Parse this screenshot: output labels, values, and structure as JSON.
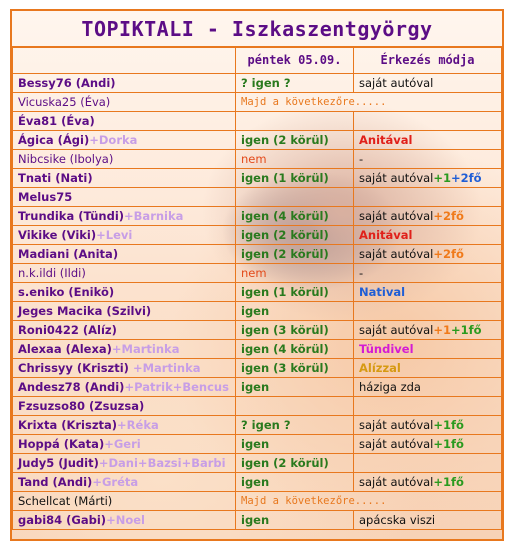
{
  "title": "TOPIKTALI - Iszkaszentgyörgy",
  "headers": {
    "col2": "péntek 05.09.",
    "col3": "Érkezés módja"
  },
  "rows": [
    {
      "name": "Bessy76 (Andi)",
      "comp": "",
      "status": "? igen ?",
      "status_style": "yes",
      "arrival": [
        {
          "t": "saját autóval",
          "s": "txt"
        }
      ]
    },
    {
      "name": "Vicuska25 (Éva)",
      "comp": "",
      "status": "Majd a következőre.....",
      "status_style": "later",
      "arrival": []
    },
    {
      "name": "Éva81 (Éva)",
      "comp": "",
      "status": "",
      "status_style": "yes",
      "arrival": []
    },
    {
      "name": "Ágica (Ági)",
      "comp": "+Dorka",
      "status": "igen (2 körül)",
      "status_style": "yes",
      "arrival": [
        {
          "t": "Anitával",
          "s": "red"
        }
      ]
    },
    {
      "name": "Nibcsike (Ibolya)",
      "comp": "",
      "status": "nem",
      "status_style": "no",
      "arrival": [
        {
          "t": "-",
          "s": "txt"
        }
      ]
    },
    {
      "name": "Tnati (Nati)",
      "comp": "",
      "status": "igen (1 körül)",
      "status_style": "yes",
      "arrival": [
        {
          "t": "saját autóval",
          "s": "txt"
        },
        {
          "t": "+1",
          "s": "green"
        },
        {
          "t": "+2fő",
          "s": "blue"
        }
      ]
    },
    {
      "name": "Melus75",
      "comp": "",
      "status": "",
      "status_style": "yes",
      "arrival": []
    },
    {
      "name": "Trundika (Tündi)",
      "comp": "+Barnika",
      "status": "igen (4 körül)",
      "status_style": "yes",
      "arrival": [
        {
          "t": "saját autóval",
          "s": "txt"
        },
        {
          "t": "+2fő",
          "s": "orange"
        }
      ]
    },
    {
      "name": "Vikike (Viki)",
      "comp": "+Levi",
      "status": "igen (2 körül)",
      "status_style": "yes",
      "arrival": [
        {
          "t": "Anitával",
          "s": "red"
        }
      ]
    },
    {
      "name": "Madiani (Anita)",
      "comp": "",
      "status": "igen (2 körül)",
      "status_style": "yes",
      "arrival": [
        {
          "t": "saját autóval",
          "s": "txt"
        },
        {
          "t": "+2fő",
          "s": "orange"
        }
      ]
    },
    {
      "name": "n.k.ildi (Ildi)",
      "comp": "",
      "status": "nem",
      "status_style": "no",
      "arrival": [
        {
          "t": "-",
          "s": "txt"
        }
      ]
    },
    {
      "name": "s.eniko (Enikö)",
      "comp": "",
      "status": "igen (1 körül)",
      "status_style": "yes",
      "arrival": [
        {
          "t": "Natival",
          "s": "blue"
        }
      ]
    },
    {
      "name": "Jeges Macika (Szilvi)",
      "comp": "",
      "status": "igen",
      "status_style": "yes",
      "arrival": []
    },
    {
      "name": "Roni0422 (Alíz)",
      "comp": "",
      "status": "igen (3 körül)",
      "status_style": "yes",
      "arrival": [
        {
          "t": "saját autóval",
          "s": "txt"
        },
        {
          "t": "+1",
          "s": "orange"
        },
        {
          "t": "+1fő",
          "s": "green"
        }
      ]
    },
    {
      "name": "Alexaa (Alexa)",
      "comp": "+Martinka",
      "status": "igen (4 körül)",
      "status_style": "yes",
      "arrival": [
        {
          "t": "Tündivel",
          "s": "magenta"
        }
      ]
    },
    {
      "name": "Chrissyy (Kriszti)",
      "comp": " +Martinka",
      "status": "igen (3 körül)",
      "status_style": "yes",
      "arrival": [
        {
          "t": "Alízzal",
          "s": "ochre"
        }
      ]
    },
    {
      "name": "Andesz78 (Andi)",
      "comp": "+Patrik+Bencus",
      "status": "igen",
      "status_style": "yes",
      "arrival": [
        {
          "t": "háziga zda",
          "s": "txt"
        }
      ]
    },
    {
      "name": "Fzsuzso80 (Zsuzsa)",
      "comp": "",
      "status": "",
      "status_style": "yes",
      "arrival": []
    },
    {
      "name": "Krixta (Kriszta)",
      "comp": "+Réka",
      "status": "? igen ?",
      "status_style": "yes",
      "arrival": [
        {
          "t": "saját autóval",
          "s": "txt"
        },
        {
          "t": "+1fő",
          "s": "green"
        }
      ]
    },
    {
      "name": "Hoppá (Kata)",
      "comp": "+Geri",
      "status": "igen",
      "status_style": "yes",
      "arrival": [
        {
          "t": "saját autóval",
          "s": "txt"
        },
        {
          "t": "+1fő",
          "s": "green"
        }
      ]
    },
    {
      "name": "Judy5 (Judit)",
      "comp": "+Dani+Bazsi+Barbi",
      "status": "igen (2 körül)",
      "status_style": "yes",
      "arrival": []
    },
    {
      "name": "Tand (Andi)",
      "comp": "+Gréta",
      "status": "igen",
      "status_style": "yes",
      "arrival": [
        {
          "t": "saját autóval",
          "s": "txt"
        },
        {
          "t": "+1fő",
          "s": "green"
        }
      ]
    },
    {
      "name": "Schellcat (Márti)",
      "comp": "",
      "status": "Majd a következőre.....",
      "status_style": "later",
      "arrival": [],
      "name_style": "plain"
    },
    {
      "name": "gabi84 (Gabi)",
      "comp": "+Noel",
      "status": "igen",
      "status_style": "yes",
      "arrival": [
        {
          "t": "apácska viszi",
          "s": "txt"
        }
      ]
    }
  ]
}
